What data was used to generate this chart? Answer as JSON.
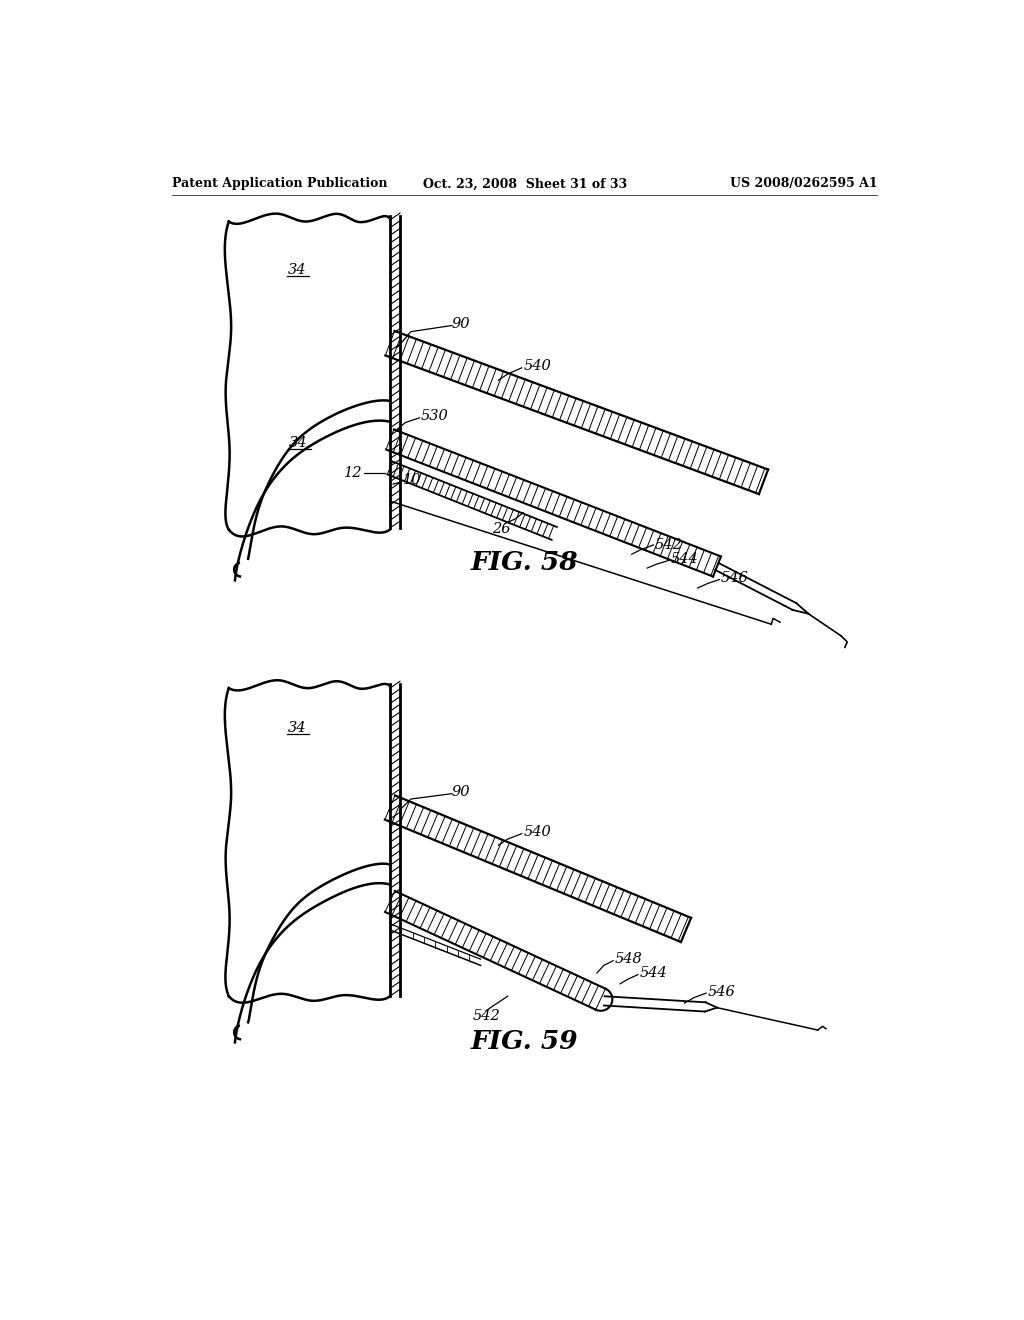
{
  "bg_color": "#ffffff",
  "line_color": "#000000",
  "header_left": "Patent Application Publication",
  "header_center": "Oct. 23, 2008  Sheet 31 of 33",
  "header_right": "US 2008/0262595 A1",
  "fig58_caption": "FIG. 58",
  "fig59_caption": "FIG. 59"
}
